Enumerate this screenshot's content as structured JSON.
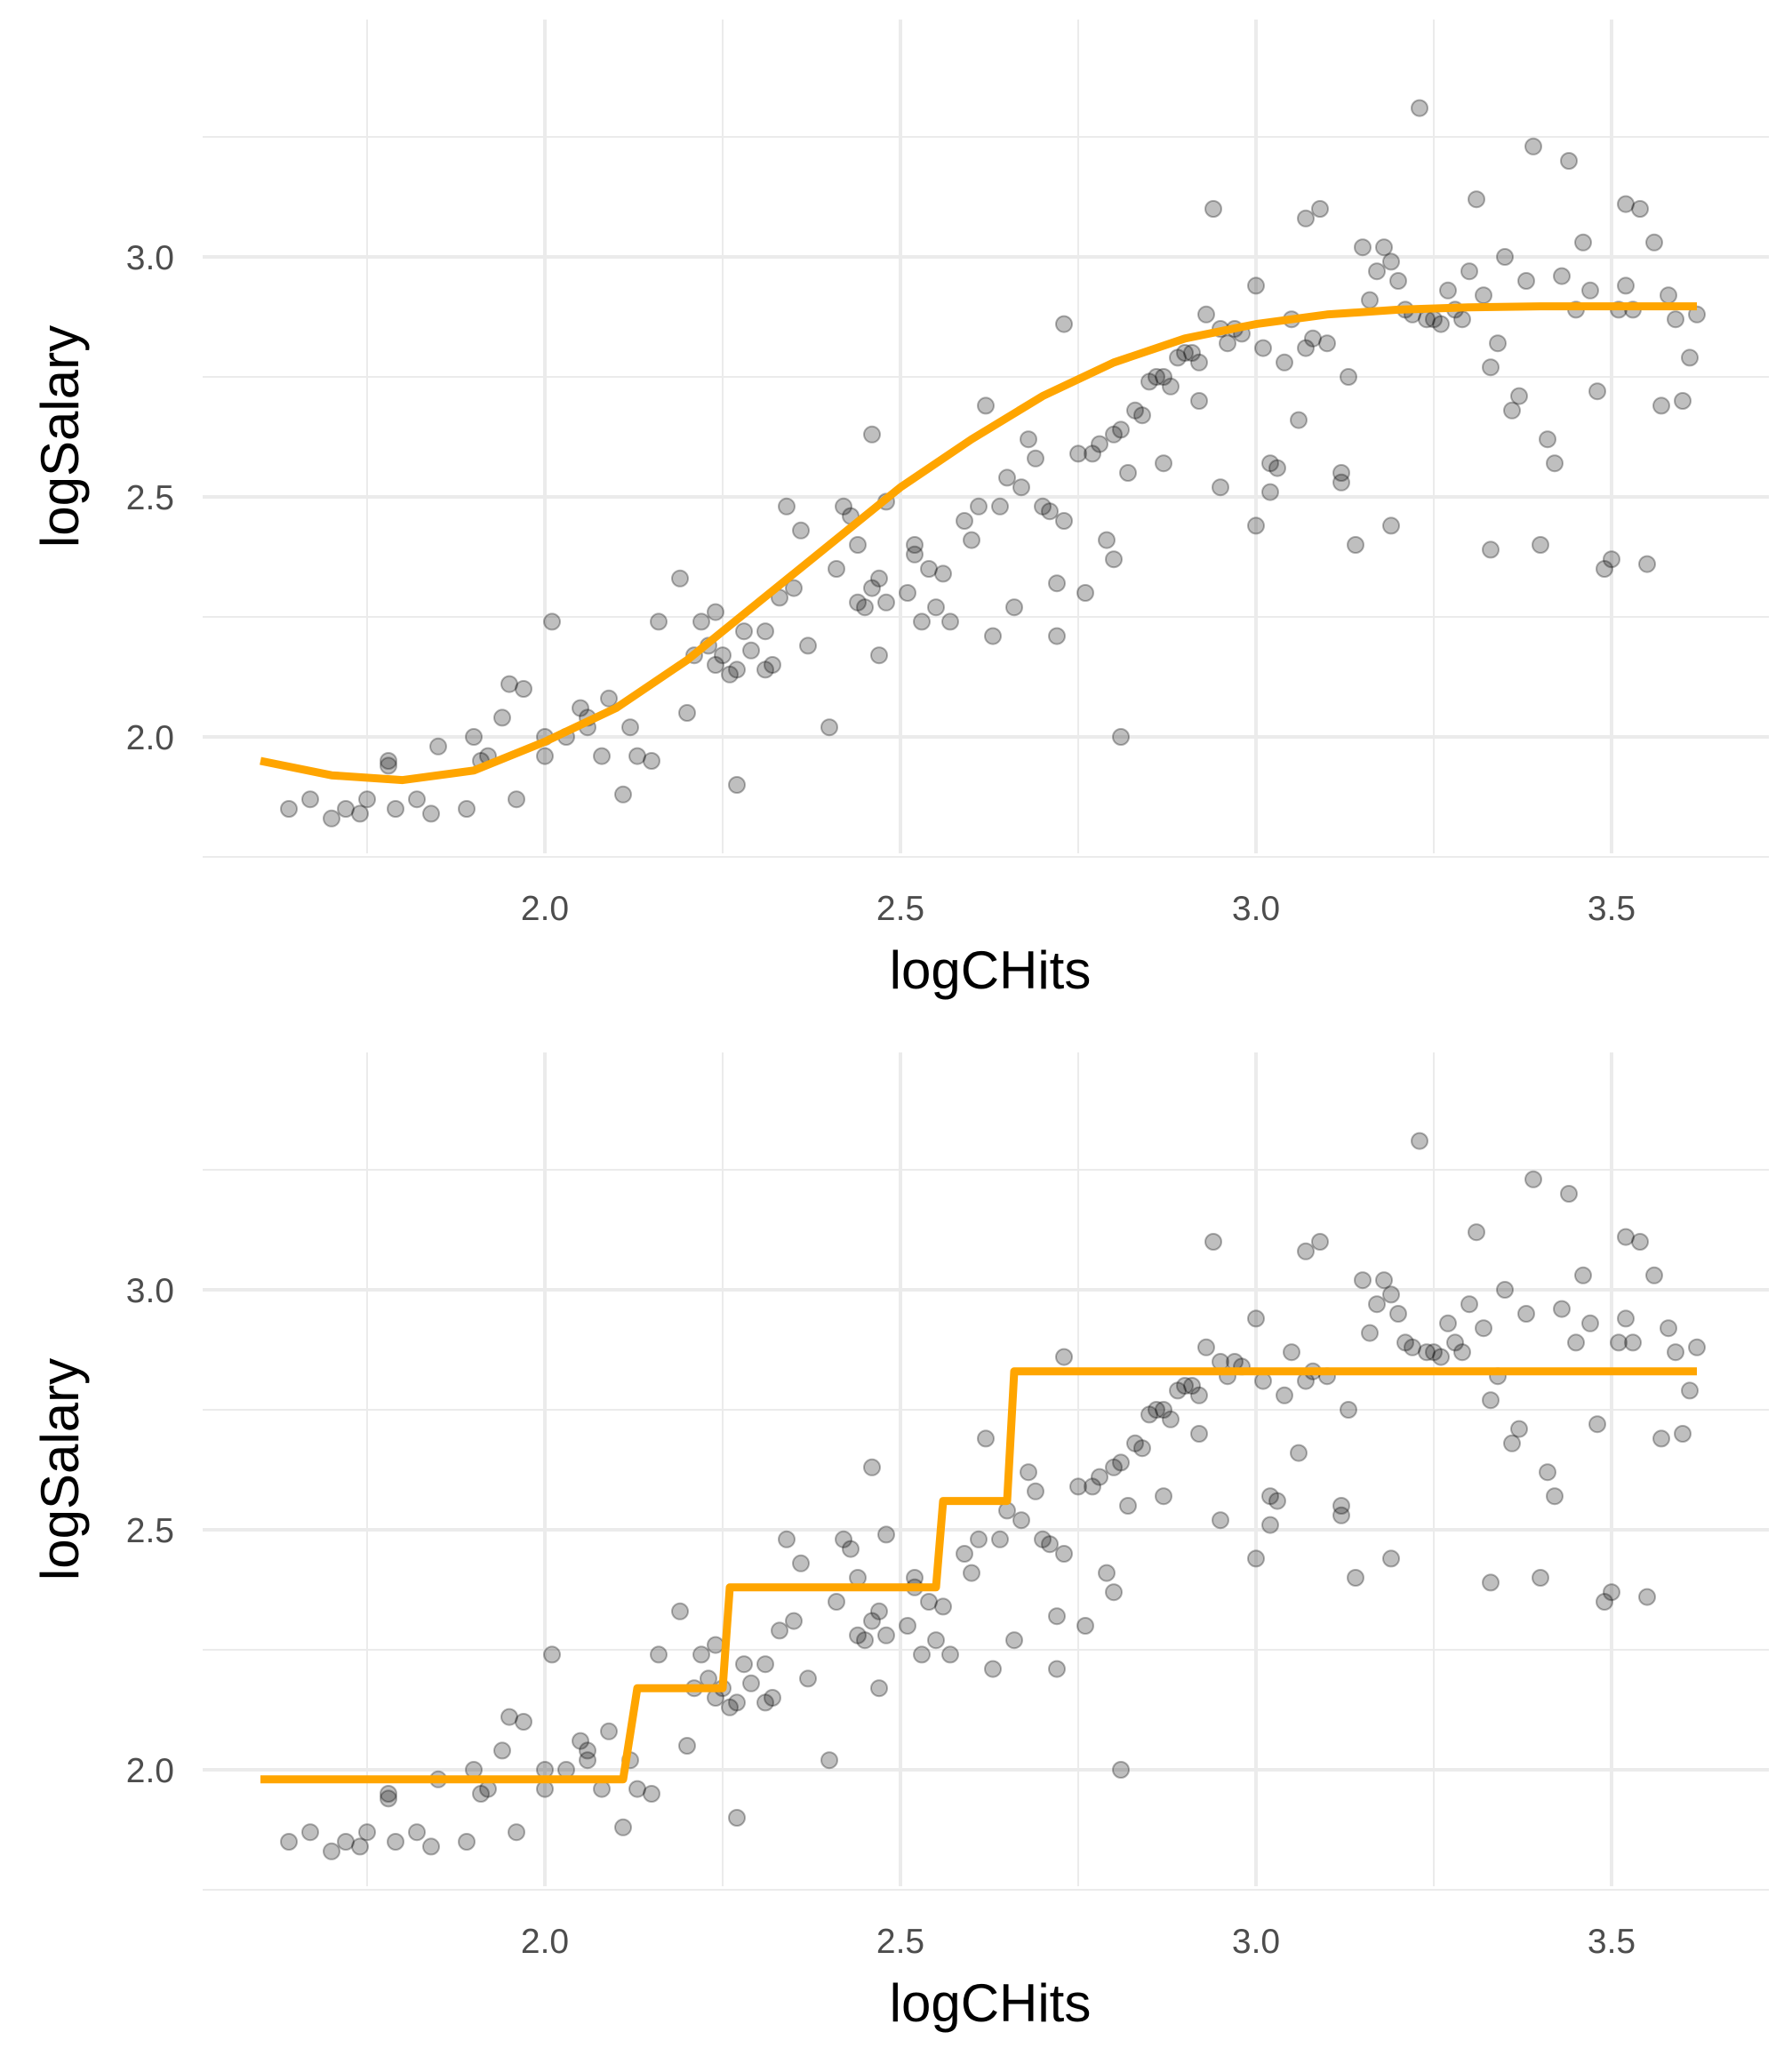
{
  "chart_data": [
    {
      "type": "scatter",
      "title": "",
      "xlabel": "logCHits",
      "ylabel": "logSalary",
      "xlim": [
        1.6,
        3.65
      ],
      "ylim": [
        1.8,
        3.4
      ],
      "xticks": [
        "2.0",
        "2.5",
        "3.0",
        "3.5"
      ],
      "yticks": [
        "2.0",
        "2.5",
        "3.0"
      ],
      "grid": true,
      "fit": "smooth",
      "fit_color": "#FFA500",
      "point_color": "#000000",
      "fit_curve": [
        [
          1.6,
          1.95
        ],
        [
          1.7,
          1.92
        ],
        [
          1.8,
          1.91
        ],
        [
          1.9,
          1.93
        ],
        [
          2.0,
          1.99
        ],
        [
          2.1,
          2.06
        ],
        [
          2.2,
          2.16
        ],
        [
          2.3,
          2.28
        ],
        [
          2.4,
          2.4
        ],
        [
          2.5,
          2.52
        ],
        [
          2.6,
          2.62
        ],
        [
          2.7,
          2.71
        ],
        [
          2.8,
          2.78
        ],
        [
          2.9,
          2.83
        ],
        [
          3.0,
          2.86
        ],
        [
          3.1,
          2.88
        ],
        [
          3.2,
          2.89
        ],
        [
          3.3,
          2.895
        ],
        [
          3.4,
          2.897
        ],
        [
          3.5,
          2.897
        ],
        [
          3.62,
          2.897
        ]
      ]
    },
    {
      "type": "scatter",
      "title": "",
      "xlabel": "logCHits",
      "ylabel": "logSalary",
      "xlim": [
        1.6,
        3.65
      ],
      "ylim": [
        1.8,
        3.4
      ],
      "xticks": [
        "2.0",
        "2.5",
        "3.0",
        "3.5"
      ],
      "yticks": [
        "2.0",
        "2.5",
        "3.0"
      ],
      "grid": true,
      "fit": "step",
      "fit_color": "#FFA500",
      "point_color": "#000000",
      "fit_curve": [
        [
          1.6,
          1.98
        ],
        [
          2.11,
          1.98
        ],
        [
          2.13,
          2.17
        ],
        [
          2.25,
          2.17
        ],
        [
          2.26,
          2.38
        ],
        [
          2.55,
          2.38
        ],
        [
          2.56,
          2.56
        ],
        [
          2.65,
          2.56
        ],
        [
          2.66,
          2.83
        ],
        [
          3.62,
          2.83
        ]
      ]
    }
  ],
  "points": [
    [
      1.64,
      1.85
    ],
    [
      1.67,
      1.87
    ],
    [
      1.7,
      1.83
    ],
    [
      1.72,
      1.85
    ],
    [
      1.74,
      1.84
    ],
    [
      1.75,
      1.87
    ],
    [
      1.78,
      1.95
    ],
    [
      1.78,
      1.94
    ],
    [
      1.79,
      1.85
    ],
    [
      1.82,
      1.87
    ],
    [
      1.84,
      1.84
    ],
    [
      1.85,
      1.98
    ],
    [
      1.89,
      1.85
    ],
    [
      1.9,
      2.0
    ],
    [
      1.91,
      1.95
    ],
    [
      1.92,
      1.96
    ],
    [
      1.94,
      2.04
    ],
    [
      1.95,
      2.11
    ],
    [
      1.96,
      1.87
    ],
    [
      1.97,
      2.1
    ],
    [
      2.0,
      1.96
    ],
    [
      2.0,
      2.0
    ],
    [
      2.01,
      2.24
    ],
    [
      2.03,
      2.0
    ],
    [
      2.05,
      2.06
    ],
    [
      2.06,
      2.04
    ],
    [
      2.06,
      2.02
    ],
    [
      2.08,
      1.96
    ],
    [
      2.09,
      2.08
    ],
    [
      2.11,
      1.88
    ],
    [
      2.12,
      2.02
    ],
    [
      2.13,
      1.96
    ],
    [
      2.15,
      1.95
    ],
    [
      2.16,
      2.24
    ],
    [
      2.19,
      2.33
    ],
    [
      2.2,
      2.05
    ],
    [
      2.21,
      2.17
    ],
    [
      2.22,
      2.24
    ],
    [
      2.23,
      2.19
    ],
    [
      2.24,
      2.26
    ],
    [
      2.24,
      2.15
    ],
    [
      2.25,
      2.17
    ],
    [
      2.26,
      2.13
    ],
    [
      2.27,
      1.9
    ],
    [
      2.27,
      2.14
    ],
    [
      2.28,
      2.22
    ],
    [
      2.29,
      2.18
    ],
    [
      2.31,
      2.14
    ],
    [
      2.31,
      2.22
    ],
    [
      2.32,
      2.15
    ],
    [
      2.33,
      2.29
    ],
    [
      2.34,
      2.48
    ],
    [
      2.35,
      2.31
    ],
    [
      2.36,
      2.43
    ],
    [
      2.37,
      2.19
    ],
    [
      2.4,
      2.02
    ],
    [
      2.41,
      2.35
    ],
    [
      2.42,
      2.48
    ],
    [
      2.43,
      2.46
    ],
    [
      2.44,
      2.4
    ],
    [
      2.44,
      2.28
    ],
    [
      2.45,
      2.27
    ],
    [
      2.46,
      2.63
    ],
    [
      2.46,
      2.31
    ],
    [
      2.47,
      2.17
    ],
    [
      2.47,
      2.33
    ],
    [
      2.48,
      2.28
    ],
    [
      2.48,
      2.49
    ],
    [
      2.51,
      2.3
    ],
    [
      2.52,
      2.4
    ],
    [
      2.52,
      2.38
    ],
    [
      2.53,
      2.24
    ],
    [
      2.54,
      2.35
    ],
    [
      2.55,
      2.27
    ],
    [
      2.56,
      2.34
    ],
    [
      2.57,
      2.24
    ],
    [
      2.59,
      2.45
    ],
    [
      2.6,
      2.41
    ],
    [
      2.61,
      2.48
    ],
    [
      2.62,
      2.69
    ],
    [
      2.63,
      2.21
    ],
    [
      2.64,
      2.48
    ],
    [
      2.65,
      2.54
    ],
    [
      2.66,
      2.27
    ],
    [
      2.67,
      2.52
    ],
    [
      2.68,
      2.62
    ],
    [
      2.69,
      2.58
    ],
    [
      2.7,
      2.48
    ],
    [
      2.71,
      2.47
    ],
    [
      2.72,
      2.32
    ],
    [
      2.72,
      2.21
    ],
    [
      2.73,
      2.86
    ],
    [
      2.73,
      2.45
    ],
    [
      2.75,
      2.59
    ],
    [
      2.76,
      2.3
    ],
    [
      2.77,
      2.59
    ],
    [
      2.78,
      2.61
    ],
    [
      2.79,
      2.41
    ],
    [
      2.8,
      2.37
    ],
    [
      2.8,
      2.63
    ],
    [
      2.81,
      2.0
    ],
    [
      2.81,
      2.64
    ],
    [
      2.82,
      2.55
    ],
    [
      2.83,
      2.68
    ],
    [
      2.84,
      2.67
    ],
    [
      2.85,
      2.74
    ],
    [
      2.86,
      2.75
    ],
    [
      2.87,
      2.75
    ],
    [
      2.87,
      2.57
    ],
    [
      2.88,
      2.73
    ],
    [
      2.89,
      2.79
    ],
    [
      2.9,
      2.8
    ],
    [
      2.91,
      2.8
    ],
    [
      2.92,
      2.7
    ],
    [
      2.92,
      2.78
    ],
    [
      2.93,
      2.88
    ],
    [
      2.94,
      3.1
    ],
    [
      2.95,
      2.85
    ],
    [
      2.95,
      2.52
    ],
    [
      2.96,
      2.82
    ],
    [
      2.97,
      2.85
    ],
    [
      2.98,
      2.84
    ],
    [
      3.0,
      2.94
    ],
    [
      3.0,
      2.44
    ],
    [
      3.01,
      2.81
    ],
    [
      3.02,
      2.51
    ],
    [
      3.02,
      2.57
    ],
    [
      3.03,
      2.56
    ],
    [
      3.04,
      2.78
    ],
    [
      3.05,
      2.87
    ],
    [
      3.06,
      2.66
    ],
    [
      3.07,
      2.81
    ],
    [
      3.07,
      3.08
    ],
    [
      3.08,
      2.83
    ],
    [
      3.09,
      3.1
    ],
    [
      3.1,
      2.82
    ],
    [
      3.12,
      2.53
    ],
    [
      3.12,
      2.55
    ],
    [
      3.13,
      2.75
    ],
    [
      3.14,
      2.4
    ],
    [
      3.15,
      3.02
    ],
    [
      3.16,
      2.91
    ],
    [
      3.17,
      2.97
    ],
    [
      3.18,
      3.02
    ],
    [
      3.19,
      2.99
    ],
    [
      3.19,
      2.44
    ],
    [
      3.2,
      2.95
    ],
    [
      3.21,
      2.89
    ],
    [
      3.22,
      2.88
    ],
    [
      3.23,
      3.31
    ],
    [
      3.24,
      2.87
    ],
    [
      3.25,
      2.87
    ],
    [
      3.26,
      2.86
    ],
    [
      3.27,
      2.93
    ],
    [
      3.28,
      2.89
    ],
    [
      3.29,
      2.87
    ],
    [
      3.3,
      2.97
    ],
    [
      3.31,
      3.12
    ],
    [
      3.32,
      2.92
    ],
    [
      3.33,
      2.77
    ],
    [
      3.33,
      2.39
    ],
    [
      3.34,
      2.82
    ],
    [
      3.35,
      3.0
    ],
    [
      3.36,
      2.68
    ],
    [
      3.37,
      2.71
    ],
    [
      3.38,
      2.95
    ],
    [
      3.39,
      3.23
    ],
    [
      3.4,
      2.4
    ],
    [
      3.41,
      2.62
    ],
    [
      3.42,
      2.57
    ],
    [
      3.43,
      2.96
    ],
    [
      3.44,
      3.2
    ],
    [
      3.45,
      2.89
    ],
    [
      3.46,
      3.03
    ],
    [
      3.47,
      2.93
    ],
    [
      3.48,
      2.72
    ],
    [
      3.49,
      2.35
    ],
    [
      3.5,
      2.37
    ],
    [
      3.51,
      2.89
    ],
    [
      3.52,
      2.94
    ],
    [
      3.52,
      3.11
    ],
    [
      3.53,
      2.89
    ],
    [
      3.54,
      3.1
    ],
    [
      3.55,
      2.36
    ],
    [
      3.56,
      3.03
    ],
    [
      3.57,
      2.69
    ],
    [
      3.58,
      2.92
    ],
    [
      3.59,
      2.87
    ],
    [
      3.6,
      2.7
    ],
    [
      3.61,
      2.79
    ],
    [
      3.62,
      2.88
    ]
  ]
}
